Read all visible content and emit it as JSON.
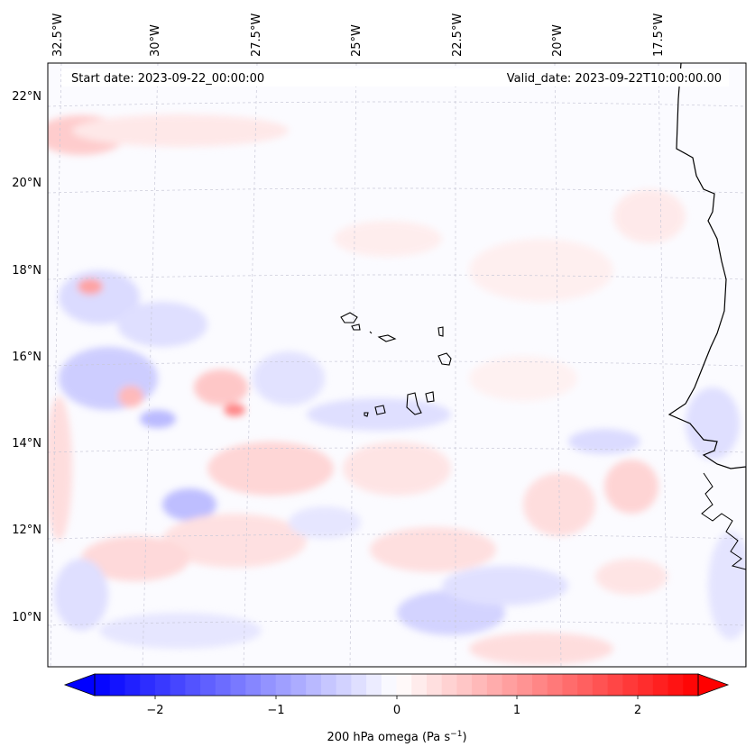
{
  "header": {
    "start_date": "Start date: 2023-09-22_00:00:00",
    "valid_date": "Valid_date: 2023-09-22T10:00:00.00"
  },
  "axes": {
    "lon_labels": [
      "32.5°W",
      "30°W",
      "27.5°W",
      "25°W",
      "22.5°W",
      "20°W",
      "17.5°W"
    ],
    "lat_labels": [
      "22°N",
      "20°N",
      "18°N",
      "16°N",
      "14°N",
      "12°N",
      "10°N"
    ]
  },
  "colorbar": {
    "ticks": [
      "−2",
      "−1",
      "0",
      "1",
      "2"
    ],
    "label": "200 hPa omega (Pa s",
    "label_sup": "−1",
    "label_end": ")",
    "min_color": "#0000ff",
    "mid_color": "#ffffff",
    "max_color": "#ff0000"
  },
  "map": {
    "ocean_color": "#fbfbff",
    "coast_color": "#000000",
    "grid_color": "#c8c8d8"
  }
}
